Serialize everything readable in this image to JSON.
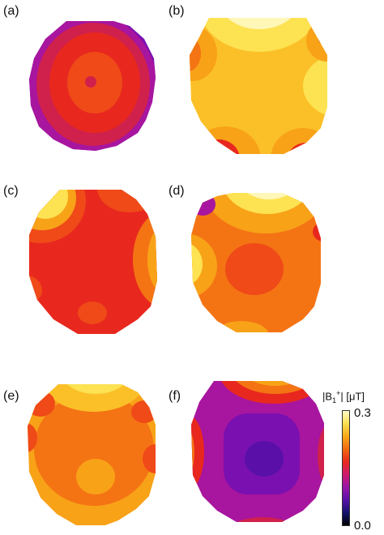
{
  "panels": [
    {
      "label": "(a)"
    },
    {
      "label": "(b)"
    },
    {
      "label": "(c)"
    },
    {
      "label": "(d)"
    },
    {
      "label": "(e)"
    },
    {
      "label": "(f)"
    }
  ],
  "colorbar": {
    "title_prefix": "|B",
    "title_sub": "1",
    "title_sup": "+",
    "title_suffix": "| [μT]",
    "max_label": "0.3",
    "min_label": "0.0",
    "colormap": [
      "#000000",
      "#12126e",
      "#5a10a8",
      "#9a16a8",
      "#d01a6e",
      "#e8281e",
      "#f26a10",
      "#f8a818",
      "#fce050",
      "#fffbc8"
    ]
  },
  "colors": {
    "black": "#000000",
    "navy": "#12126e",
    "purple": "#7a10b0",
    "magenta": "#a8159e",
    "crimson": "#d0204c",
    "red": "#e8281e",
    "redorange": "#ef4a18",
    "orange": "#f47414",
    "darkorange": "#f8a218",
    "amber": "#fbc028",
    "yellow": "#fde252",
    "paleyellow": "#fff7b8"
  }
}
